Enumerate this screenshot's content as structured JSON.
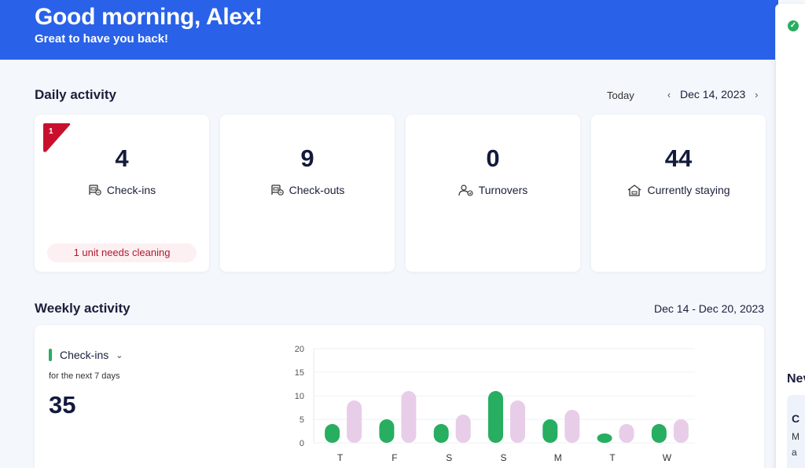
{
  "header": {
    "greeting": "Good morning, Alex!",
    "subgreeting": "Great to have you back!"
  },
  "daily": {
    "title": "Daily activity",
    "today_label": "Today",
    "date": "Dec 14, 2023",
    "cards": [
      {
        "value": "4",
        "label": "Check-ins",
        "icon": "check-in-icon"
      },
      {
        "value": "9",
        "label": "Check-outs",
        "icon": "check-out-icon"
      },
      {
        "value": "0",
        "label": "Turnovers",
        "icon": "turnovers-icon"
      },
      {
        "value": "44",
        "label": "Currently staying",
        "icon": "home-icon"
      }
    ],
    "alert_count": "1",
    "cleaning_note": "1 unit needs cleaning"
  },
  "weekly": {
    "title": "Weekly activity",
    "date_range": "Dec 14 - Dec 20, 2023",
    "metric_label": "Check-ins",
    "metric_sub": "for the next 7 days",
    "metric_total": "35"
  },
  "side_panel": {
    "news_label": "Nev",
    "card_line1": "C",
    "card_line2": "M",
    "card_line3": "a"
  },
  "colors": {
    "header": "#2962e8",
    "series_primary": "#27ae60",
    "series_secondary": "#e8cde9",
    "alert": "#c8102e"
  },
  "chart_data": {
    "type": "bar",
    "categories": [
      "T",
      "F",
      "S",
      "S",
      "M",
      "T",
      "W"
    ],
    "series": [
      {
        "name": "Check-ins",
        "values": [
          4,
          5,
          4,
          11,
          5,
          2,
          4
        ]
      },
      {
        "values": [
          9,
          11,
          6,
          9,
          7,
          4,
          5
        ]
      }
    ],
    "ylim": [
      0,
      20
    ],
    "yticks": [
      0,
      5,
      10,
      15,
      20
    ],
    "grid": true
  }
}
